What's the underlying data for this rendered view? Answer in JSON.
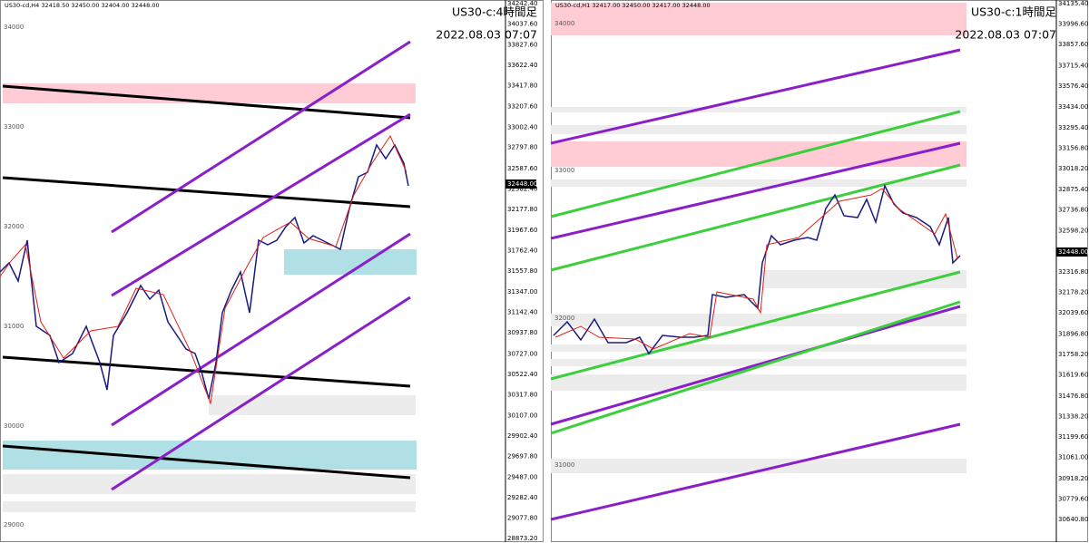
{
  "panels": [
    {
      "header": "US30-cd,H4  32418.50 32450.00 32404.00 32448.00",
      "title": "US30-c:4時間足",
      "date": "2022.08.03 07:07",
      "price_tag": "32448.00",
      "axis_labels": [
        "34242.40",
        "34037.60",
        "33827.60",
        "33622.40",
        "33417.80",
        "33207.60",
        "33002.40",
        "32797.80",
        "32587.60",
        "32382.40",
        "32177.80",
        "31967.60",
        "31762.40",
        "31557.80",
        "31347.00",
        "31142.40",
        "30937.80",
        "30727.00",
        "30522.40",
        "30317.80",
        "30107.00",
        "29902.40",
        "29697.80",
        "29487.00",
        "29282.40",
        "29077.80",
        "28873.20"
      ],
      "level_labels": [
        "34000",
        "33000",
        "32000",
        "31000",
        "30000",
        "29000"
      ]
    },
    {
      "header": "US30-cd,H1  32417.00 32450.00 32417.00 32448.00",
      "title": "US30-c:1時間足",
      "date": "2022.08.03 07:07",
      "price_tag": "32448.00",
      "axis_labels": [
        "34135.40",
        "33996.60",
        "33857.60",
        "33715.40",
        "33576.40",
        "33434.00",
        "33295.40",
        "33156.80",
        "33018.20",
        "32875.40",
        "32736.80",
        "32598.20",
        "32316.80",
        "32178.20",
        "32039.60",
        "31896.80",
        "31758.20",
        "31619.60",
        "31476.80",
        "31338.20",
        "31199.60",
        "31061.00",
        "30918.20",
        "30779.60",
        "30640.80"
      ],
      "level_labels": [
        "34000",
        "33000",
        "32000",
        "31000"
      ]
    }
  ]
}
